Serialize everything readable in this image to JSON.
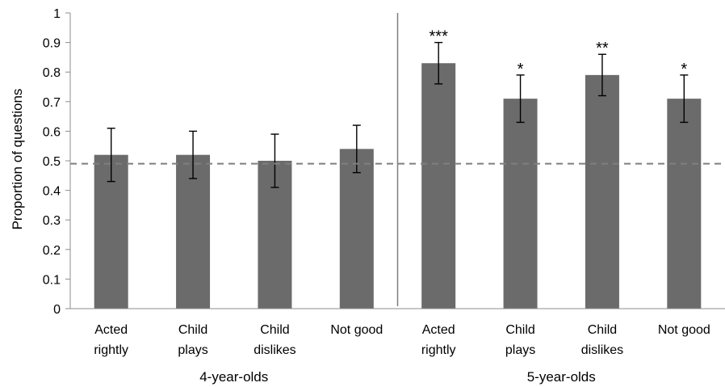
{
  "chart_data": {
    "type": "bar",
    "ylabel": "Proportion of questions",
    "xlabel": "",
    "ylim": [
      0,
      1
    ],
    "yticks": [
      "0",
      "0.1",
      "0.2",
      "0.3",
      "0.4",
      "0.5",
      "0.6",
      "0.7",
      "0.8",
      "0.9",
      "1"
    ],
    "reference_line": 0.49,
    "groups": [
      {
        "label": "4-year-olds",
        "bars": [
          {
            "label": [
              "Acted",
              "rightly"
            ],
            "value": 0.52,
            "err": 0.09,
            "sig": ""
          },
          {
            "label": [
              "Child",
              "plays"
            ],
            "value": 0.52,
            "err": 0.08,
            "sig": ""
          },
          {
            "label": [
              "Child",
              "dislikes"
            ],
            "value": 0.5,
            "err": 0.09,
            "sig": ""
          },
          {
            "label": [
              "Not good"
            ],
            "value": 0.54,
            "err": 0.08,
            "sig": ""
          }
        ]
      },
      {
        "label": "5-year-olds",
        "bars": [
          {
            "label": [
              "Acted",
              "rightly"
            ],
            "value": 0.83,
            "err": 0.07,
            "sig": "***"
          },
          {
            "label": [
              "Child",
              "plays"
            ],
            "value": 0.71,
            "err": 0.08,
            "sig": "*"
          },
          {
            "label": [
              "Child",
              "dislikes"
            ],
            "value": 0.79,
            "err": 0.07,
            "sig": "**"
          },
          {
            "label": [
              "Not good"
            ],
            "value": 0.71,
            "err": 0.08,
            "sig": "*"
          }
        ]
      }
    ],
    "colors": {
      "bar": "#6b6b6b",
      "axis": "#8c8c8c",
      "refline": "#7f7f7f",
      "divider": "#7f7f7f"
    }
  }
}
